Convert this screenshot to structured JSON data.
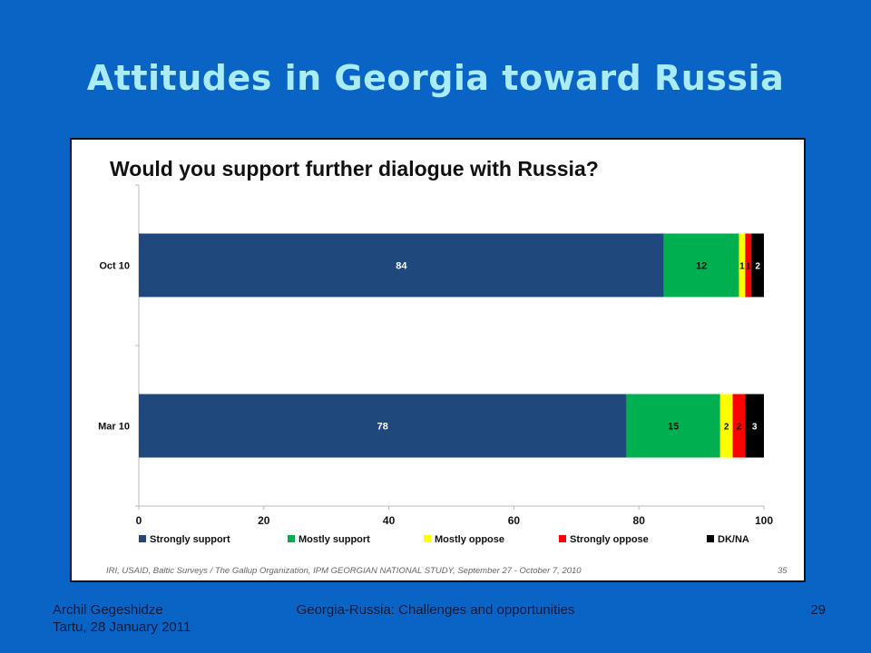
{
  "slide": {
    "title": "Attitudes in Georgia toward Russia",
    "footer_author": "Archil Gegeshidze",
    "footer_event": "Tartu, 28 January 2011",
    "footer_center": "Georgia-Russia: Challenges and opportunities",
    "page_number": "29"
  },
  "chart_data": {
    "type": "bar",
    "orientation": "horizontal",
    "stacked": true,
    "title": "Would you support further dialogue with Russia?",
    "categories": [
      "Oct 10",
      "Mar 10"
    ],
    "series": [
      {
        "name": "Strongly support",
        "color": "#1f497d",
        "values": [
          84,
          78
        ],
        "labels": [
          "84",
          "78"
        ]
      },
      {
        "name": "Mostly support",
        "color": "#00b050",
        "values": [
          12,
          15
        ],
        "labels": [
          "12",
          "15"
        ]
      },
      {
        "name": "Mostly oppose",
        "color": "#ffff00",
        "values": [
          1,
          2
        ],
        "labels": [
          "1",
          "2"
        ]
      },
      {
        "name": "Strongly oppose",
        "color": "#ff0000",
        "values": [
          1,
          2
        ],
        "labels": [
          "1",
          "2"
        ]
      },
      {
        "name": "DK/NA",
        "color": "#000000",
        "values": [
          2,
          3
        ],
        "labels": [
          "2",
          "3"
        ]
      }
    ],
    "xlim": [
      0,
      100
    ],
    "xticks": [
      "0",
      "20",
      "40",
      "60",
      "80",
      "100"
    ],
    "legend_position": "bottom",
    "grid": false,
    "source": "IRI, USAID,  Baltic Surveys / The Gallup Organization, IPM    GEORGIAN NATIONAL STUDY, September 27 - October 7, 2010",
    "slide_ref": "35"
  }
}
